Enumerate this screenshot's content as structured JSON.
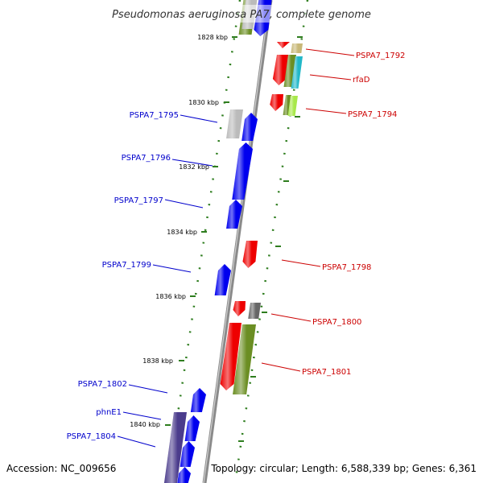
{
  "title": "Pseudomonas aeruginosa PA7, complete genome",
  "footer": {
    "accession": "Accession: NC_009656",
    "summary": "Topology: circular; Length: 6,588,339 bp; Genes: 6,361"
  },
  "colors": {
    "backbone": "#888888",
    "tick": "#2e7d1e",
    "label_plus": "#cc0000",
    "label_minus": "#0000cc",
    "red": "#ee0000",
    "blue": "#0000ee",
    "olive": "#6b8e23",
    "cyan": "#22b8c8",
    "lime": "#a8e84a",
    "tan": "#c8b878",
    "grey": "#666666",
    "lightgrey": "#bbbbbb",
    "purple": "#4b3c8c"
  },
  "ticks": [
    {
      "label": "1828 kbp"
    },
    {
      "label": "1830 kbp"
    },
    {
      "label": "1832 kbp"
    },
    {
      "label": "1834 kbp"
    },
    {
      "label": "1836 kbp"
    },
    {
      "label": "1838 kbp"
    },
    {
      "label": "1840 kbp"
    }
  ],
  "gene_labels": [
    {
      "label": "PSPA7_1792",
      "strand": "plus"
    },
    {
      "label": "rfaD",
      "strand": "plus"
    },
    {
      "label": "PSPA7_1794",
      "strand": "plus"
    },
    {
      "label": "PSPA7_1798",
      "strand": "plus"
    },
    {
      "label": "PSPA7_1800",
      "strand": "plus"
    },
    {
      "label": "PSPA7_1801",
      "strand": "plus"
    },
    {
      "label": "PSPA7_1795",
      "strand": "minus"
    },
    {
      "label": "PSPA7_1796",
      "strand": "minus"
    },
    {
      "label": "PSPA7_1797",
      "strand": "minus"
    },
    {
      "label": "PSPA7_1799",
      "strand": "minus"
    },
    {
      "label": "PSPA7_1802",
      "strand": "minus"
    },
    {
      "label": "phnE1",
      "strand": "minus"
    },
    {
      "label": "PSPA7_1804",
      "strand": "minus"
    }
  ]
}
